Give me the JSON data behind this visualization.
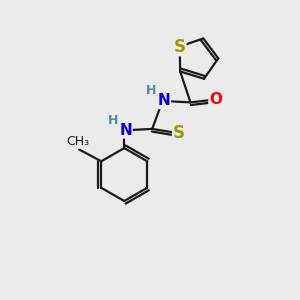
{
  "background_color": "#ebebeb",
  "bond_color": "#1a1a1a",
  "S_color": "#999900",
  "N_color": "#0000dd",
  "O_color": "#ff0000",
  "H_color": "#5588aa",
  "S2_color": "#999900",
  "line_width": 1.6,
  "font_size": 11,
  "figsize": [
    3.0,
    3.0
  ],
  "dpi": 100,
  "xlim": [
    0,
    10
  ],
  "ylim": [
    0,
    10
  ]
}
